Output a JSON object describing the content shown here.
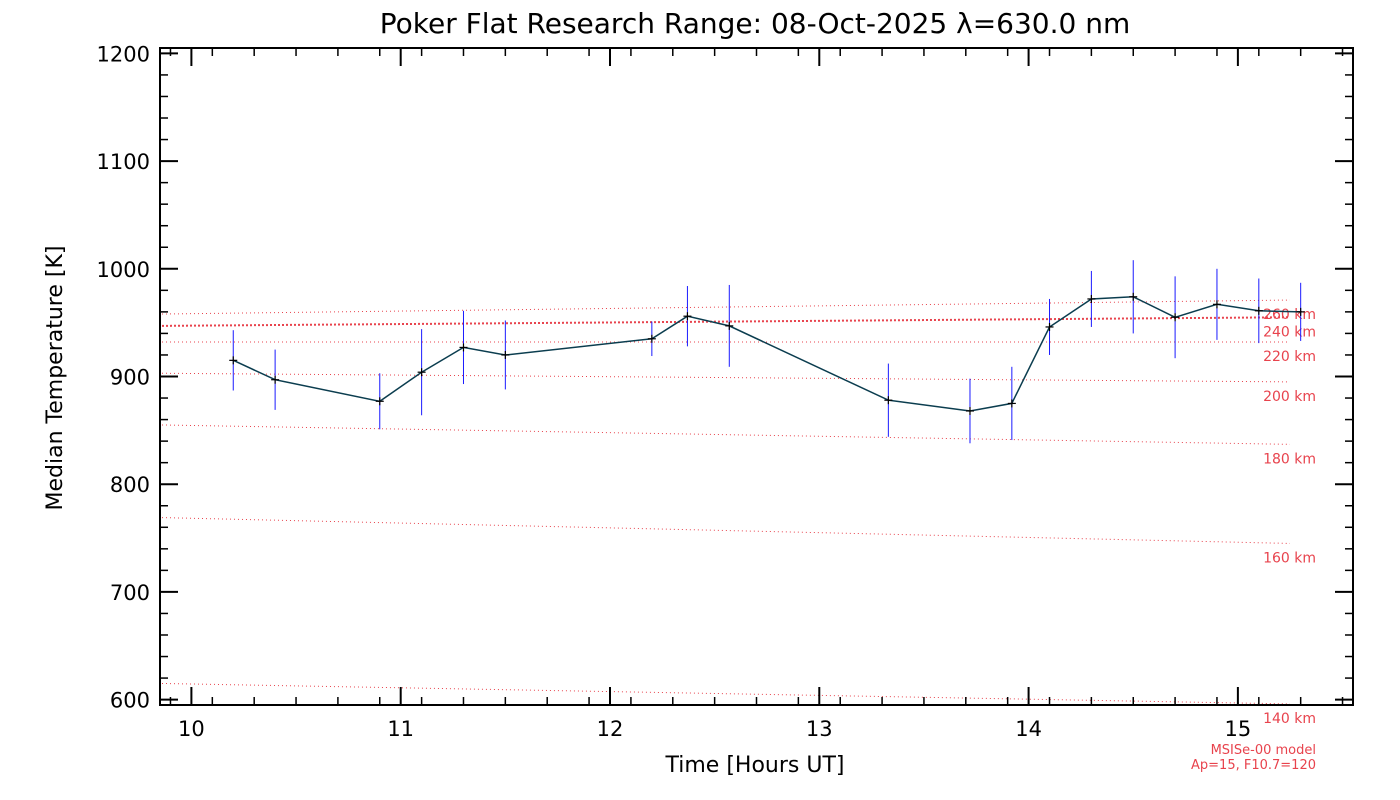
{
  "chart_data": {
    "type": "line",
    "title": "Poker Flat Research Range: 08-Oct-2025 λ=630.0 nm",
    "xlabel": "Time [Hours UT]",
    "ylabel": "Median Temperature [K]",
    "xlim": [
      9.85,
      15.55
    ],
    "ylim": [
      595,
      1205
    ],
    "xticks": [
      10,
      11,
      12,
      13,
      14,
      15
    ],
    "yticks": [
      600,
      700,
      800,
      900,
      1000,
      1100,
      1200
    ],
    "grid": false,
    "colors": {
      "series": "#0b3d4f",
      "errorbar": "#1a1aff",
      "model": "#e8434d",
      "axis": "#000000"
    },
    "series": [
      {
        "x": [
          10.2,
          10.4,
          10.9,
          11.1,
          11.3,
          11.5,
          12.2,
          12.37,
          12.57,
          13.33,
          13.72,
          13.92,
          14.1,
          14.3,
          14.5,
          14.7,
          14.9,
          15.1,
          15.3
        ],
        "y": [
          915,
          897,
          877,
          904,
          927,
          920,
          935,
          956,
          947,
          878,
          868,
          875,
          946,
          972,
          974,
          955,
          967,
          961,
          960
        ],
        "err": [
          28,
          28,
          26,
          40,
          34,
          32,
          16,
          28,
          38,
          34,
          30,
          34,
          26,
          26,
          34,
          38,
          33,
          30,
          27
        ]
      }
    ],
    "model_lines": [
      {
        "label": "260 km",
        "y_start": 958,
        "y_end": 971,
        "emphasized": false
      },
      {
        "label": "240 km",
        "y_start": 947,
        "y_end": 955,
        "emphasized": true
      },
      {
        "label": "220 km",
        "y_start": 932,
        "y_end": 932,
        "emphasized": false
      },
      {
        "label": "200 km",
        "y_start": 903,
        "y_end": 895,
        "emphasized": false
      },
      {
        "label": "180 km",
        "y_start": 855,
        "y_end": 837,
        "emphasized": false
      },
      {
        "label": "160 km",
        "y_start": 769,
        "y_end": 745,
        "emphasized": false
      },
      {
        "label": "140 km",
        "y_start": 615,
        "y_end": 596,
        "emphasized": false
      }
    ],
    "model_note": [
      "MSISe-00 model",
      "Ap=15, F10.7=120"
    ]
  }
}
